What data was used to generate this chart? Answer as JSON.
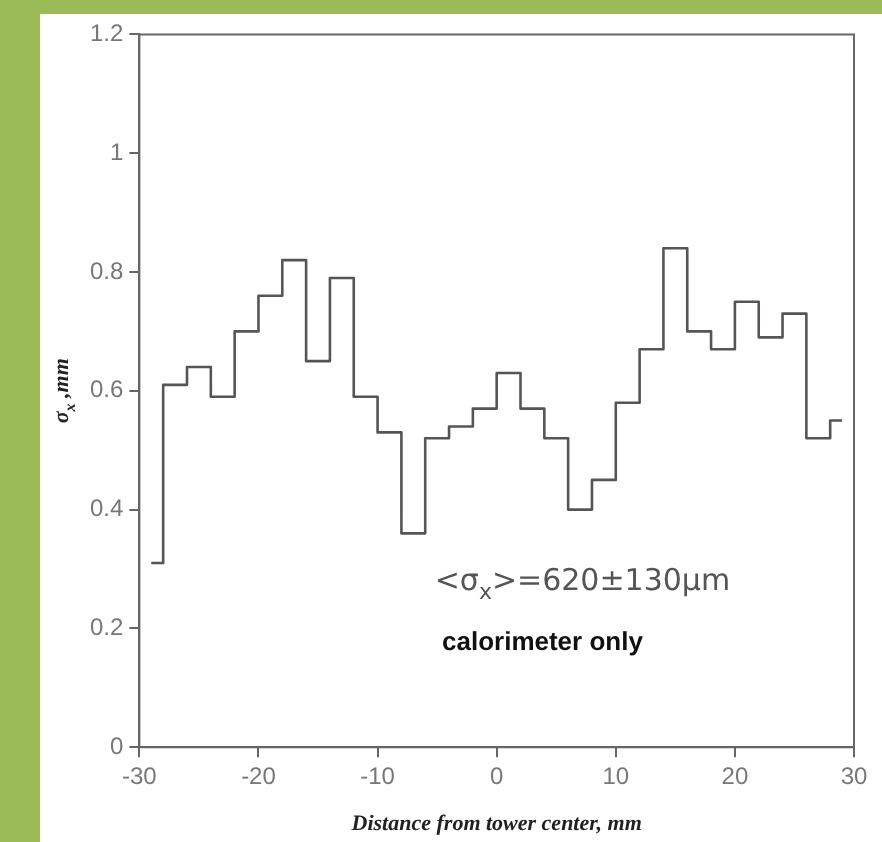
{
  "chart_data": {
    "type": "step",
    "xlabel": "Distance from tower center, mm",
    "ylabel": "σ$_{x}$ ,mm",
    "annotations": [
      "<σ$_{x}$>=620±130μm",
      "calorimeter only"
    ],
    "x": [
      -29,
      -27,
      -25,
      -23,
      -21,
      -19,
      -17,
      -15,
      -13,
      -11,
      -9,
      -7,
      -5,
      -3,
      -1,
      1,
      3,
      5,
      7,
      9,
      11,
      13,
      15,
      17,
      19,
      21,
      23,
      25,
      27,
      29
    ],
    "values": [
      0.31,
      0.61,
      0.64,
      0.59,
      0.7,
      0.76,
      0.82,
      0.65,
      0.79,
      0.59,
      0.53,
      0.36,
      0.52,
      0.54,
      0.57,
      0.63,
      0.57,
      0.52,
      0.4,
      0.45,
      0.58,
      0.67,
      0.84,
      0.7,
      0.67,
      0.75,
      0.69,
      0.73,
      0.52,
      0.55
    ],
    "color": "#555555",
    "xlim": [
      -30,
      30
    ],
    "ylim": [
      0,
      1.2
    ],
    "xticks": [
      -30,
      -20,
      -10,
      0,
      10,
      20,
      30
    ],
    "yticks": [
      0,
      {
        "value": 0.2,
        "label": "0.2"
      },
      {
        "value": 0.4,
        "label": "0.4"
      },
      {
        "value": 0.6,
        "label": "0.6"
      },
      {
        "value": 0.8,
        "label": "0.8"
      },
      1,
      {
        "value": 1.2,
        "label": "1.2"
      }
    ]
  }
}
